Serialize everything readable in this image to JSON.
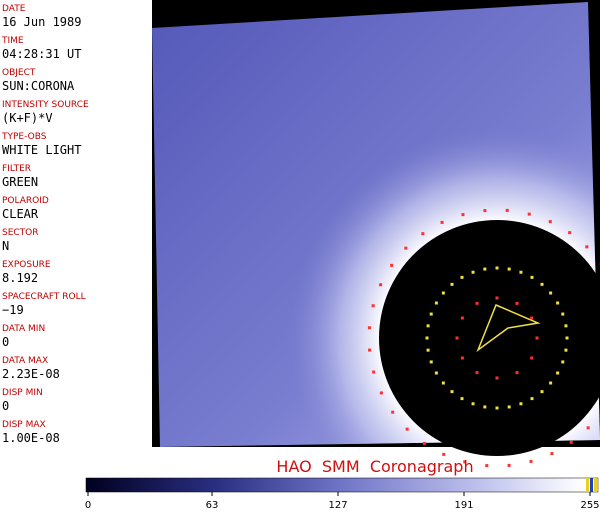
{
  "panel": {
    "fields": [
      {
        "label": "DATE",
        "value": "16 Jun 1989"
      },
      {
        "label": "TIME",
        "value": "04:28:31 UT"
      },
      {
        "label": "OBJECT",
        "value": "SUN:CORONA"
      },
      {
        "label": "INTENSITY SOURCE",
        "value": "(K+F)*V"
      },
      {
        "label": "TYPE-OBS",
        "value": "WHITE LIGHT"
      },
      {
        "label": "FILTER",
        "value": "GREEN"
      },
      {
        "label": "POLAROID",
        "value": "CLEAR"
      },
      {
        "label": "SECTOR",
        "value": "N"
      },
      {
        "label": "EXPOSURE",
        "value": "8.192"
      },
      {
        "label": "SPACECRAFT ROLL",
        "value": "−19"
      },
      {
        "label": "DATA MIN",
        "value": "0"
      },
      {
        "label": "DATA MAX",
        "value": "2.23E-08"
      },
      {
        "label": "DISP MIN",
        "value": "0"
      },
      {
        "label": "DISP MAX",
        "value": "1.00E-08"
      }
    ]
  },
  "title": "HAO  SMM  Coronagraph",
  "colorbar": {
    "ticks": [
      0,
      63,
      127,
      191,
      255
    ],
    "max": 255
  }
}
